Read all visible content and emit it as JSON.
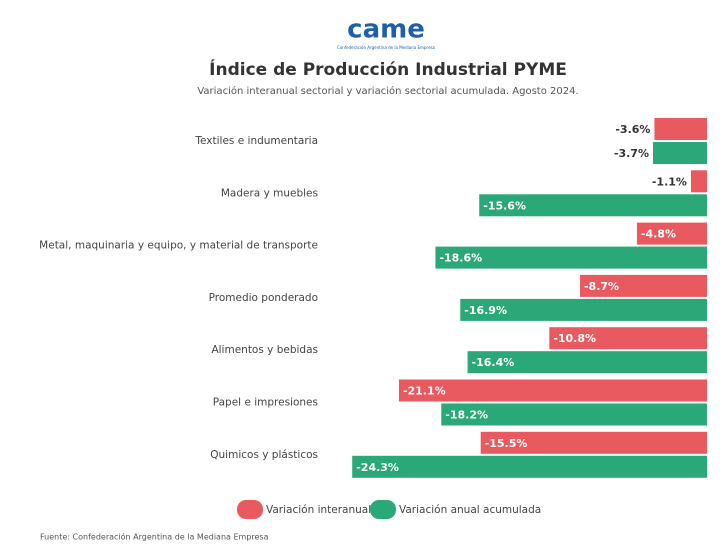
{
  "header": {
    "logo": "came",
    "logo_caption": "Confederación Argentina de la Mediana Empresa"
  },
  "chart_data": {
    "type": "hbar",
    "title": "Índice de Producción Industrial PYME",
    "subtitle": "Variación interanual sectorial y variación sectorial acumulada. Agosto 2024.",
    "categories": [
      "Textiles e indumentaria",
      "Madera y muebles",
      "Metal, maquinaria y equipo, y material de transporte",
      "Promedio ponderado",
      "Alimentos y bebidas",
      "Papel e impresiones",
      "Quimicos y plásticos"
    ],
    "series": [
      {
        "name": "Variación interanual",
        "color": "#e85a60",
        "values": [
          -3.6,
          -1.1,
          -4.8,
          -8.7,
          -10.8,
          -21.1,
          -15.5
        ],
        "value_labels": [
          "-3.6%",
          "-1.1%",
          "-4.8%",
          "-8.7%",
          "-10.8%",
          "-21.1%",
          "-15.5%"
        ]
      },
      {
        "name": "Variación anual acumulada",
        "color": "#2aa877",
        "values": [
          -3.7,
          -15.6,
          -18.6,
          -16.9,
          -16.4,
          -18.2,
          -24.3
        ],
        "value_labels": [
          "-3.7%",
          "-15.6%",
          "-18.6%",
          "-16.9%",
          "-16.4%",
          "-18.2%",
          "-24.3%"
        ]
      }
    ],
    "legend": "bottom"
  },
  "footer": {
    "source": "Fuente: Confederación Argentina de la Mediana Empresa"
  }
}
